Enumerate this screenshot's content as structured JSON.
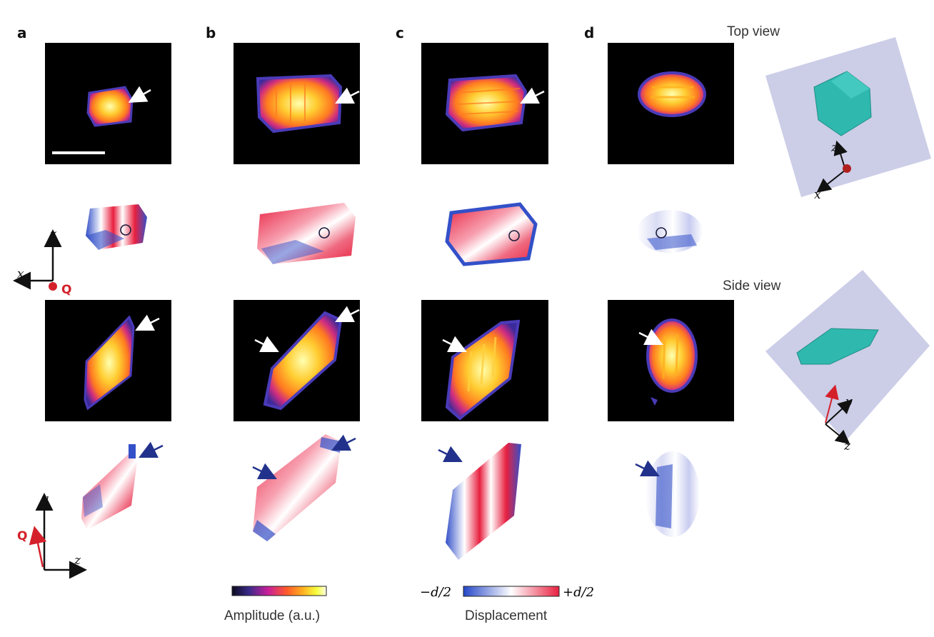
{
  "panels": {
    "a": "a",
    "b": "b",
    "c": "c",
    "d": "d"
  },
  "views": {
    "top": "Top view",
    "side": "Side view"
  },
  "axes": {
    "top_left": {
      "vertical": "z",
      "horizontal": "x",
      "vector": "Q"
    },
    "bottom_left": {
      "vertical": "y",
      "horizontal": "z",
      "vector": "Q"
    },
    "top_right": {
      "vertical": "z",
      "horizontal": "x"
    },
    "side_right": {
      "vertical": "y",
      "horizontal": "z"
    }
  },
  "colorbars": {
    "amplitude": {
      "label": "Amplitude (a.u.)",
      "stops": [
        "#0b0b1e",
        "#3b2a8a",
        "#c71f9a",
        "#ff5a2a",
        "#ffb020",
        "#f6ff40",
        "#ffffe8"
      ]
    },
    "displacement": {
      "label": "Displacement",
      "min_label": "−d/2",
      "max_label": "+d/2",
      "stops": [
        "#2446c7",
        "#ffffff",
        "#e8203f"
      ]
    }
  },
  "colors": {
    "background": "#000000",
    "accent_red": "#d4202a",
    "arrow_blue": "#22328c",
    "crystal": "#2fb8ae",
    "box": "#c9cae6"
  }
}
